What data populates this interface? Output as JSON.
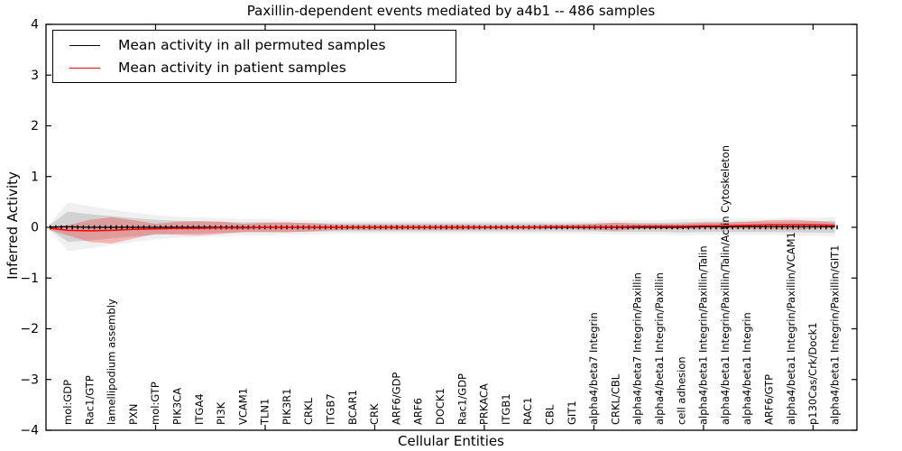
{
  "chart_data": {
    "type": "line",
    "title": "Paxillin-dependent events mediated by a4b1 -- 486 samples",
    "xlabel": "Cellular Entities",
    "ylabel": "Inferred Activity",
    "ylim": [
      -4,
      4
    ],
    "yticks": [
      4,
      3,
      2,
      1,
      0,
      -1,
      -2,
      -3,
      -4
    ],
    "ytick_labels": [
      "4",
      "3",
      "2",
      "1",
      "0",
      "−1",
      "−2",
      "−3",
      "−4"
    ],
    "xtick_positions": [
      5,
      10,
      15,
      20,
      25,
      30,
      35
    ],
    "grid": false,
    "legend_position": "upper left",
    "zero_line": {
      "value": 0,
      "style": "dotted",
      "color": "#000000"
    },
    "categories": [
      "mol:GDP",
      "Rac1/GTP",
      "lamellipodium assembly",
      "PXN",
      "mol:GTP",
      "PIK3CA",
      "ITGA4",
      "PI3K",
      "VCAM1",
      "TLN1",
      "PIK3R1",
      "CRKL",
      "ITGB7",
      "BCAR1",
      "CRK",
      "ARF6/GDP",
      "ARF6",
      "DOCK1",
      "Rac1/GDP",
      "PRKACA",
      "ITGB1",
      "RAC1",
      "CBL",
      "GIT1",
      "alpha4/beta7 Integrin",
      "CRKL/CBL",
      "alpha4/beta7 Integrin/Paxillin",
      "alpha4/beta1 Integrin/Paxillin",
      "cell adhesion",
      "alpha4/beta1 Integrin/Paxillin/Talin",
      "alpha4/beta1 Integrin/Paxillin/Talin/Actin Cytoskeleton",
      "alpha4/beta1 Integrin",
      "ARF6/GTP",
      "alpha4/beta1 Integrin/Paxillin/VCAM1",
      "p130Cas/Crk/Dock1",
      "alpha4/beta1 Integrin/Paxillin/GIT1"
    ],
    "series": [
      {
        "name": "Mean activity in all permuted samples",
        "color": "#000000",
        "band_color": "#000000",
        "band_opacity": 0.12,
        "values": [
          0.01,
          0.0,
          0.0,
          0.0,
          0.0,
          0.0,
          0.0,
          0.0,
          0.0,
          0.0,
          0.0,
          0.0,
          0.0,
          0.0,
          0.0,
          0.0,
          0.0,
          0.0,
          0.0,
          0.0,
          0.0,
          0.0,
          0.0,
          0.0,
          0.0,
          0.0,
          0.0,
          0.0,
          0.0,
          0.01,
          0.01,
          0.01,
          0.01,
          0.01,
          0.01,
          0.01
        ],
        "std": [
          0.3,
          0.26,
          0.22,
          0.18,
          0.15,
          0.13,
          0.12,
          0.11,
          0.1,
          0.1,
          0.09,
          0.09,
          0.08,
          0.08,
          0.08,
          0.08,
          0.08,
          0.08,
          0.08,
          0.08,
          0.08,
          0.08,
          0.08,
          0.08,
          0.08,
          0.09,
          0.09,
          0.09,
          0.1,
          0.1,
          0.1,
          0.1,
          0.1,
          0.11,
          0.11,
          0.12
        ]
      },
      {
        "name": "Mean activity in patient samples",
        "color": "#ff0000",
        "band_color": "#ff0000",
        "band_opacity": 0.25,
        "values": [
          -0.06,
          -0.07,
          -0.06,
          -0.04,
          -0.03,
          -0.02,
          -0.02,
          -0.01,
          -0.01,
          0.0,
          0.0,
          0.0,
          0.0,
          0.0,
          0.0,
          0.0,
          0.0,
          0.0,
          0.0,
          0.0,
          0.0,
          0.0,
          0.01,
          0.01,
          0.01,
          0.01,
          0.02,
          0.02,
          0.02,
          0.03,
          0.03,
          0.04,
          0.05,
          0.05,
          0.05,
          0.04
        ],
        "std": [
          0.1,
          0.22,
          0.26,
          0.18,
          0.1,
          0.13,
          0.14,
          0.12,
          0.08,
          0.09,
          0.1,
          0.08,
          0.06,
          0.05,
          0.05,
          0.05,
          0.05,
          0.05,
          0.05,
          0.04,
          0.04,
          0.04,
          0.04,
          0.04,
          0.06,
          0.08,
          0.05,
          0.05,
          0.05,
          0.06,
          0.06,
          0.07,
          0.09,
          0.1,
          0.08,
          0.05
        ]
      }
    ]
  }
}
